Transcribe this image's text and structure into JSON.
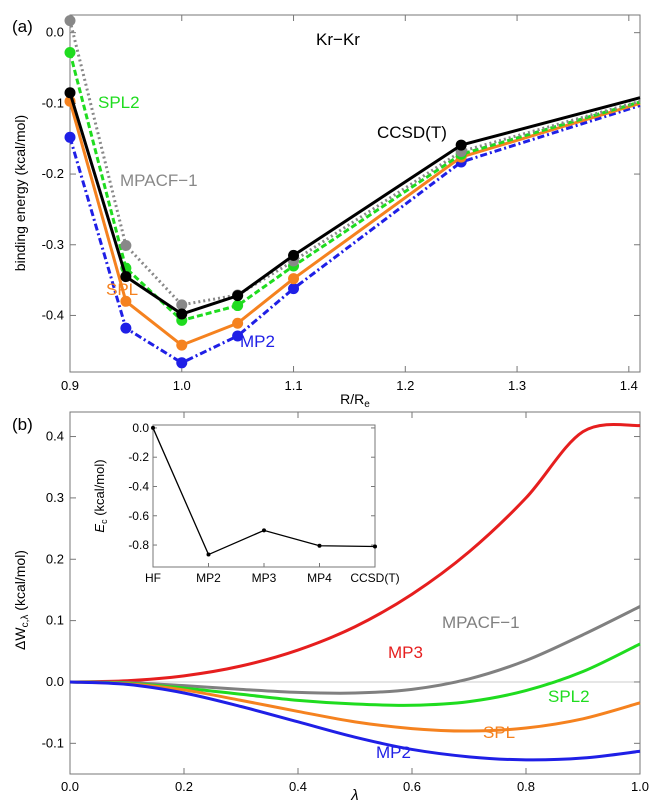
{
  "chart_data": [
    {
      "panel_label": "(a)",
      "type": "line",
      "title": "Kr−Kr",
      "xlabel": "R/R",
      "xlabel_sub": "e",
      "ylabel": "binding energy (kcal/mol)",
      "xlim": [
        0.9,
        1.41
      ],
      "ylim": [
        -0.48,
        0.025
      ],
      "xticks": [
        0.9,
        1.0,
        1.1,
        1.2,
        1.3,
        1.4
      ],
      "xtick_labels": [
        "0.9",
        "1.0",
        "1.1",
        "1.2",
        "1.3",
        "1.4"
      ],
      "yticks": [
        0.0,
        -0.1,
        -0.2,
        -0.3,
        -0.4
      ],
      "ytick_labels": [
        "0.0",
        "-0.1",
        "-0.2",
        "-0.3",
        "-0.4"
      ],
      "x": [
        0.9,
        0.95,
        1.0,
        1.05,
        1.1,
        1.25,
        1.41
      ],
      "series": [
        {
          "name": "MP2",
          "color": "#1f1fe6",
          "style": "dashdot",
          "values": [
            -0.148,
            -0.418,
            -0.467,
            -0.429,
            -0.362,
            -0.183,
            -0.103
          ]
        },
        {
          "name": "SPL",
          "color": "#f5821f",
          "style": "solid",
          "values": [
            -0.097,
            -0.38,
            -0.442,
            -0.411,
            -0.348,
            -0.176,
            -0.1
          ]
        },
        {
          "name": "SPL2",
          "color": "#1fdc1f",
          "style": "dashed",
          "values": [
            -0.028,
            -0.333,
            -0.407,
            -0.386,
            -0.33,
            -0.172,
            -0.098
          ]
        },
        {
          "name": "MPACF−1",
          "color": "#888888",
          "style": "dotted",
          "values": [
            0.017,
            -0.301,
            -0.385,
            -0.371,
            -0.323,
            -0.168,
            -0.097
          ]
        },
        {
          "name": "CCSD(T)",
          "color": "#000000",
          "style": "solid",
          "values": [
            -0.085,
            -0.345,
            -0.398,
            -0.372,
            -0.315,
            -0.159,
            -0.092
          ]
        }
      ]
    },
    {
      "panel_label": "(b)",
      "type": "line",
      "xlabel": "λ",
      "ylabel": "ΔW",
      "ylabel_sub": "c,λ",
      "ylabel_unit": " (kcal/mol)",
      "xlim": [
        0,
        1
      ],
      "ylim": [
        -0.15,
        0.44
      ],
      "xticks": [
        0,
        0.2,
        0.4,
        0.6,
        0.8,
        1.0
      ],
      "xtick_labels": [
        "0.0",
        "0.2",
        "0.4",
        "0.6",
        "0.8",
        "1.0"
      ],
      "yticks": [
        -0.1,
        0,
        0.1,
        0.2,
        0.3,
        0.4
      ],
      "ytick_labels": [
        "-0.1",
        "0.0",
        "0.1",
        "0.2",
        "0.3",
        "0.4"
      ],
      "x": [
        0,
        0.1,
        0.2,
        0.3,
        0.4,
        0.5,
        0.6,
        0.7,
        0.8,
        0.9,
        1.0
      ],
      "series": [
        {
          "name": "MP3",
          "color": "#e61e1e",
          "values": [
            0,
            0.002,
            0.01,
            0.026,
            0.052,
            0.09,
            0.143,
            0.212,
            0.3,
            0.408,
            0.418
          ]
        },
        {
          "name": "MPACF−1",
          "color": "#808080",
          "values": [
            0,
            -0.001,
            -0.006,
            -0.012,
            -0.017,
            -0.018,
            -0.012,
            0.005,
            0.035,
            0.077,
            0.123
          ]
        },
        {
          "name": "SPL2",
          "color": "#1fdc1f",
          "values": [
            0,
            -0.002,
            -0.01,
            -0.02,
            -0.03,
            -0.036,
            -0.038,
            -0.032,
            -0.014,
            0.017,
            0.062
          ]
        },
        {
          "name": "SPL",
          "color": "#f5821f",
          "values": [
            0,
            -0.003,
            -0.013,
            -0.03,
            -0.048,
            -0.065,
            -0.076,
            -0.08,
            -0.075,
            -0.06,
            -0.034
          ]
        },
        {
          "name": "MP2",
          "color": "#1f1fe6",
          "values": [
            0,
            -0.004,
            -0.018,
            -0.04,
            -0.065,
            -0.09,
            -0.11,
            -0.122,
            -0.127,
            -0.124,
            -0.113
          ]
        }
      ],
      "inset": {
        "type": "line",
        "ylabel": "E",
        "ylabel_sub": "c",
        "ylabel_unit": " (kcal/mol)",
        "categories": [
          "HF",
          "MP2",
          "MP3",
          "MP4",
          "CCSD(T)"
        ],
        "values": [
          0,
          -0.865,
          -0.7,
          -0.805,
          -0.81
        ],
        "ylim": [
          -0.95,
          0.02
        ],
        "yticks": [
          0,
          -0.2,
          -0.4,
          -0.6,
          -0.8
        ],
        "ytick_labels": [
          "0.0",
          "-0.2",
          "-0.4",
          "-0.6",
          "-0.8"
        ]
      }
    }
  ]
}
